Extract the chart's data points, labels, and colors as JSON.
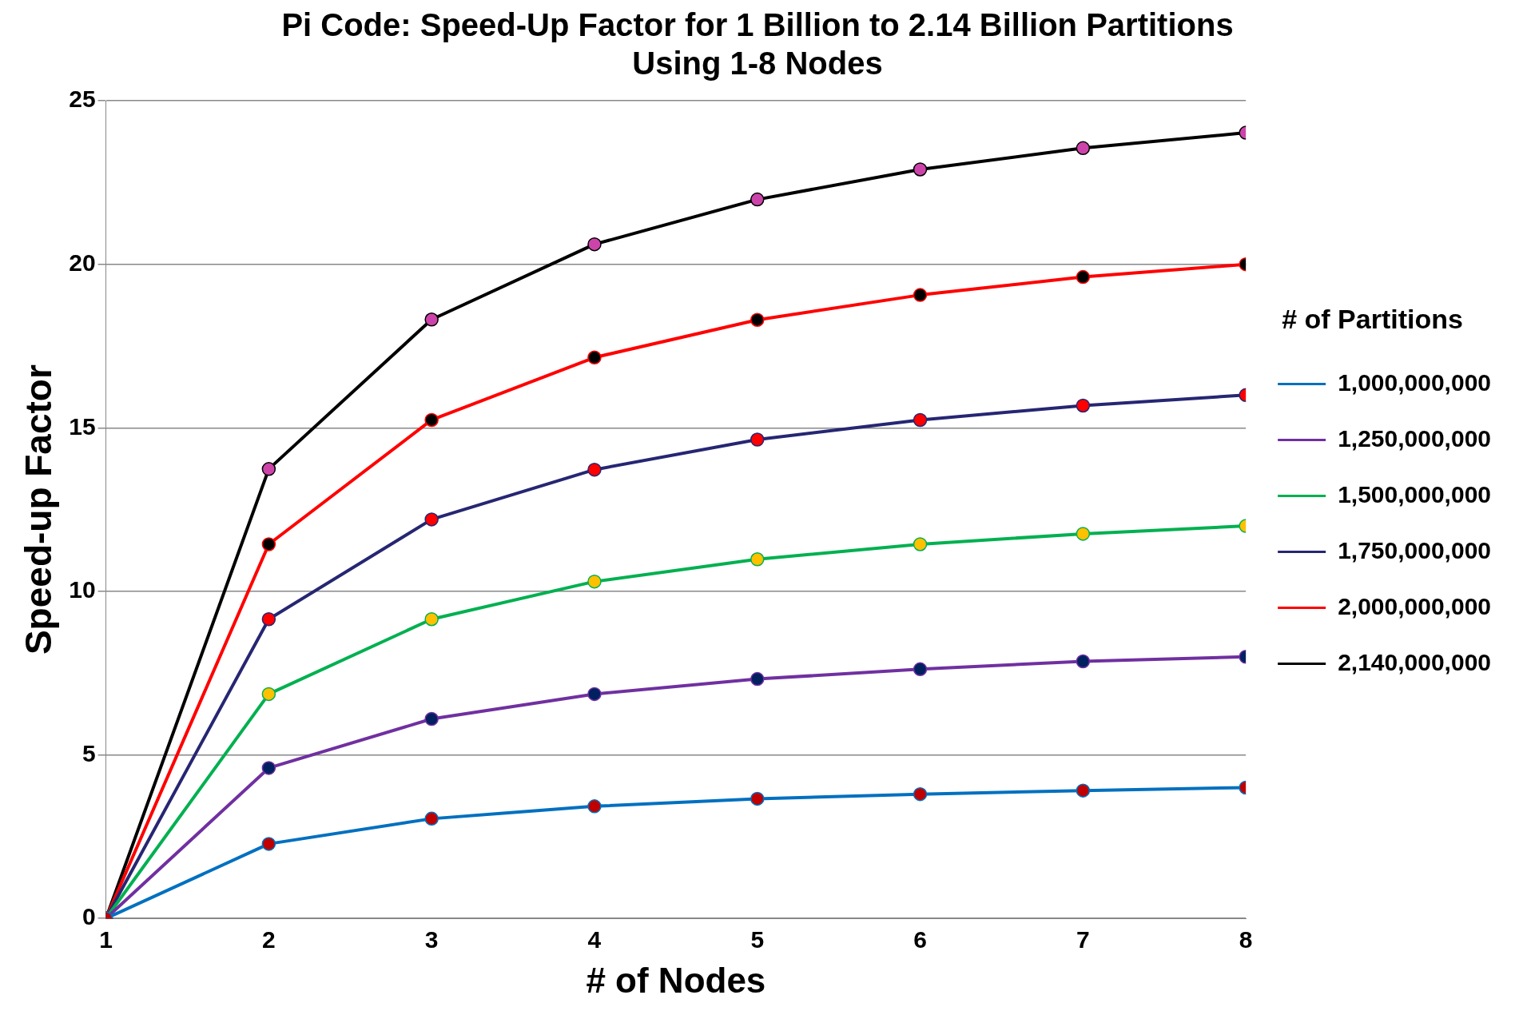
{
  "chart_data": {
    "type": "line",
    "title": [
      "Pi Code: Speed-Up Factor for 1 Billion to 2.14 Billion Partitions",
      "Using 1-8 Nodes"
    ],
    "xlabel": "# of Nodes",
    "ylabel": "Speed-up Factor",
    "legend_title": "# of Partitions",
    "legend": "right",
    "grid": "y",
    "marker": "circle",
    "line_style": "solid",
    "x": [
      1,
      2,
      3,
      4,
      5,
      6,
      7,
      8
    ],
    "xlim": [
      1,
      8
    ],
    "xticks": [
      1,
      2,
      3,
      4,
      5,
      6,
      7,
      8
    ],
    "ylim": [
      0,
      25
    ],
    "yticks": [
      0,
      5,
      10,
      15,
      20,
      25
    ],
    "series": [
      {
        "name": "1,000,000,000",
        "color": "#0070c0",
        "colors": [
          "#c00000",
          "#c00000",
          "#c00000",
          "#c00000",
          "#c00000",
          "#c00000",
          "#c00000",
          "#c00000"
        ],
        "values": [
          0,
          2.28,
          3.05,
          3.43,
          3.66,
          3.8,
          3.91,
          4.0
        ]
      },
      {
        "name": "1,250,000,000",
        "color": "#7030a0",
        "colors": [
          "#002060",
          "#002060",
          "#002060",
          "#002060",
          "#002060",
          "#002060",
          "#002060",
          "#002060"
        ],
        "values": [
          0,
          4.6,
          6.1,
          6.86,
          7.32,
          7.62,
          7.86,
          8.0
        ]
      },
      {
        "name": "1,500,000,000",
        "color": "#00b050",
        "colors": [
          "#ffc000",
          "#ffc000",
          "#ffc000",
          "#ffc000",
          "#ffc000",
          "#ffc000",
          "#ffc000",
          "#ffc000"
        ],
        "values": [
          0,
          6.86,
          9.15,
          10.3,
          10.98,
          11.44,
          11.76,
          12.0
        ]
      },
      {
        "name": "1,750,000,000",
        "color": "#262673",
        "colors": [
          "#ff0000",
          "#ff0000",
          "#ff0000",
          "#ff0000",
          "#ff0000",
          "#ff0000",
          "#ff0000",
          "#ff0000"
        ],
        "values": [
          0,
          9.15,
          12.2,
          13.72,
          14.64,
          15.24,
          15.68,
          16.0
        ]
      },
      {
        "name": "2,000,000,000",
        "color": "#ff0000",
        "colors": [
          "#000000",
          "#000000",
          "#000000",
          "#000000",
          "#000000",
          "#000000",
          "#000000",
          "#000000"
        ],
        "values": [
          0,
          11.44,
          15.24,
          17.15,
          18.3,
          19.06,
          19.61,
          20.0
        ]
      },
      {
        "name": "2,140,000,000",
        "color": "#000000",
        "colors": [
          "#cc44aa",
          "#cc44aa",
          "#cc44aa",
          "#cc44aa",
          "#cc44aa",
          "#cc44aa",
          "#cc44aa",
          "#cc44aa"
        ],
        "values": [
          0,
          13.74,
          18.31,
          20.61,
          21.98,
          22.9,
          23.55,
          24.02
        ]
      }
    ]
  }
}
